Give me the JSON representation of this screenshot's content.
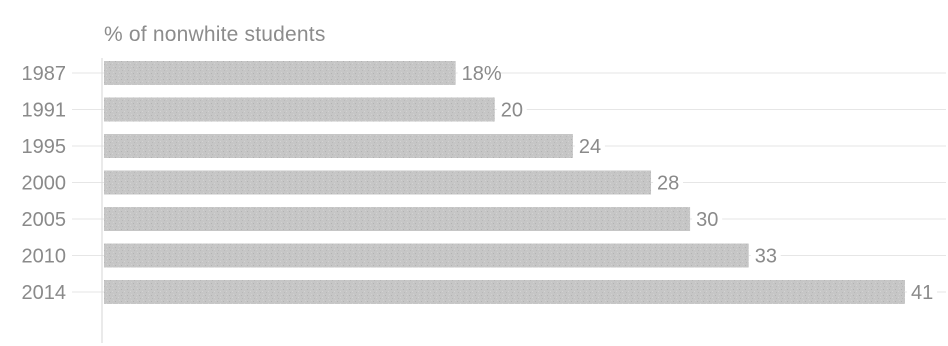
{
  "chart_data": {
    "type": "bar",
    "orientation": "horizontal",
    "subtitle": "% of nonwhite students",
    "categories": [
      "1987",
      "1991",
      "1995",
      "2000",
      "2005",
      "2010",
      "2014"
    ],
    "values": [
      18,
      20,
      24,
      28,
      30,
      33,
      41
    ],
    "value_labels": [
      "18%",
      "20",
      "24",
      "28",
      "30",
      "33",
      "41"
    ],
    "xlim": [
      0,
      41
    ],
    "grid": true,
    "legend": "none",
    "colors": {
      "bar": "#c4c4c4",
      "text": "#8a8a8a",
      "grid": "#e6e6e6"
    }
  }
}
